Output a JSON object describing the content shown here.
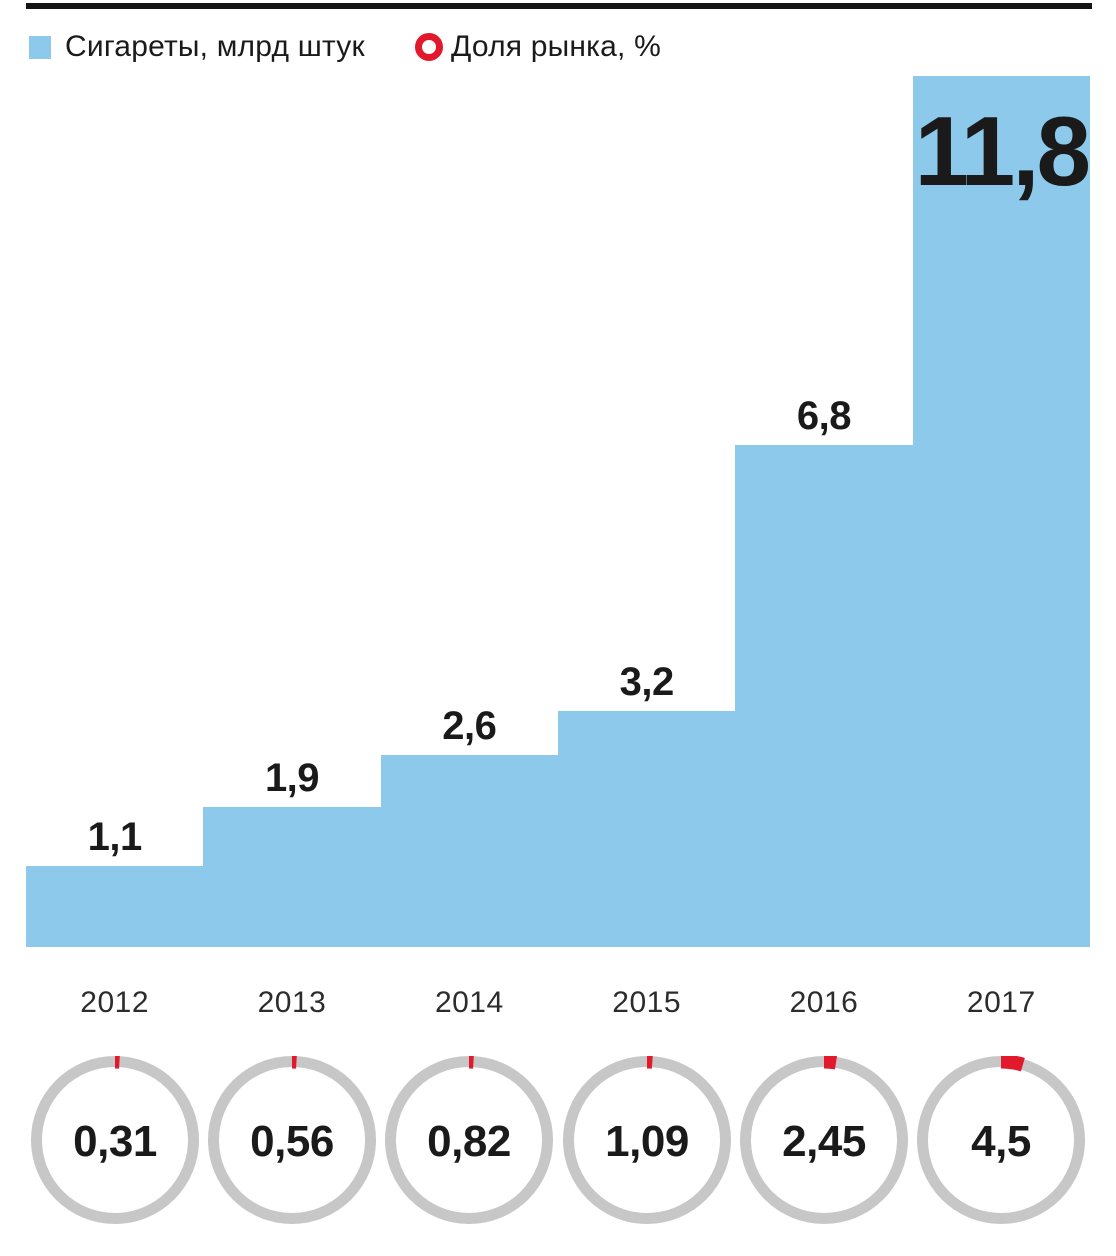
{
  "legend": {
    "bars_label": "Сигареты, млрд штук",
    "share_label": "Доля рынка, %"
  },
  "colors": {
    "bar_blue": "#8dc9eb",
    "accent_red": "#e2182c",
    "ring_gray": "#c7c7c7",
    "text_ink": "#1a1a1a",
    "year_text": "#2c2c2c",
    "top_rule": "#141414"
  },
  "chart_data": {
    "type": "composite",
    "title": "",
    "categories": [
      "2012",
      "2013",
      "2014",
      "2015",
      "2016",
      "2017"
    ],
    "series": [
      {
        "name": "Сигареты, млрд штук",
        "type": "step-area-bar",
        "values": [
          1.1,
          1.9,
          2.6,
          3.2,
          6.8,
          11.8
        ],
        "labels": [
          "1,1",
          "1,9",
          "2,6",
          "3,2",
          "6,8",
          "11,8"
        ]
      },
      {
        "name": "Доля рынка, %",
        "type": "donut",
        "values": [
          0.31,
          0.56,
          0.82,
          1.09,
          2.45,
          4.5
        ],
        "labels": [
          "0,31",
          "0,56",
          "0,82",
          "1,09",
          "2,45",
          "4,5"
        ]
      }
    ],
    "ylim": [
      0,
      11.8
    ],
    "grid": false,
    "legend_position": "top"
  }
}
